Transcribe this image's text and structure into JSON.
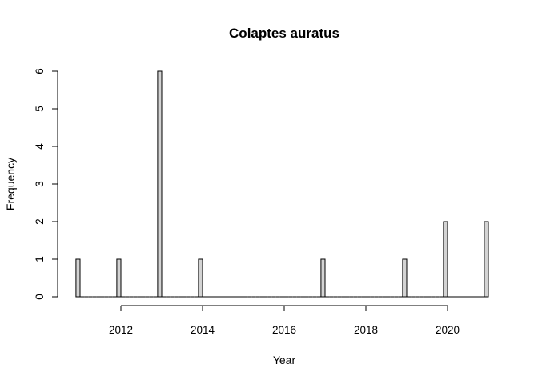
{
  "chart_data": {
    "type": "bar",
    "title": "Colaptes auratus",
    "xlabel": "Year",
    "ylabel": "Frequency",
    "x_ticks": [
      2012,
      2014,
      2016,
      2018,
      2020
    ],
    "y_ticks": [
      0,
      1,
      2,
      3,
      4,
      5,
      6
    ],
    "xlim": [
      2011,
      2021
    ],
    "ylim": [
      0,
      6
    ],
    "bin_width": 0.1,
    "bins": [
      {
        "x": 2011,
        "value": 1
      },
      {
        "x": 2012,
        "value": 1
      },
      {
        "x": 2013,
        "value": 6
      },
      {
        "x": 2014,
        "value": 1
      },
      {
        "x": 2017,
        "value": 1
      },
      {
        "x": 2019,
        "value": 1
      },
      {
        "x": 2020,
        "value": 2
      },
      {
        "x": 2021,
        "value": 2
      }
    ],
    "grid": false,
    "legend": "none"
  }
}
